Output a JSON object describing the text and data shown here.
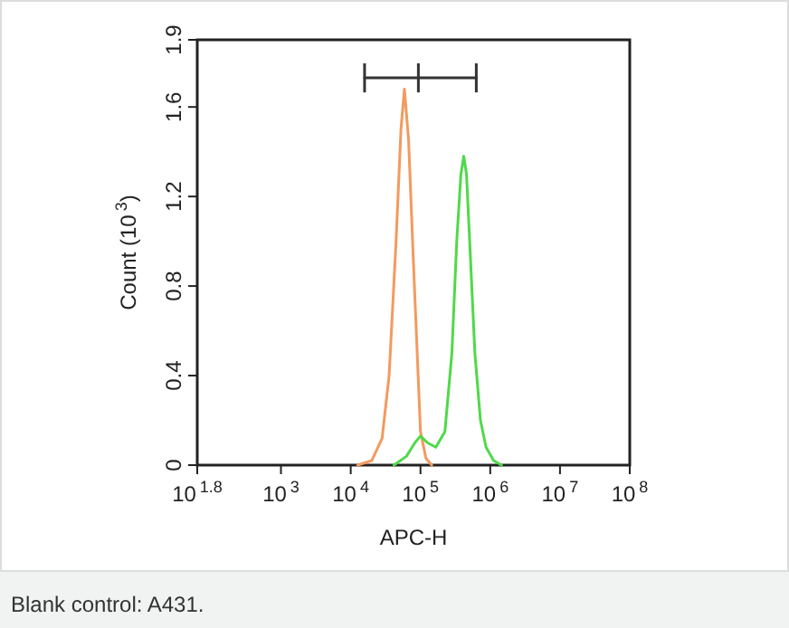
{
  "chart_data": {
    "type": "line",
    "xlabel": "APC-H",
    "ylabel": "Count (10$^{3}$)",
    "log": "x",
    "marker": "none",
    "line_style": "solid",
    "xlim": [
      63.1,
      100000000
    ],
    "xticks": [
      {
        "value": 63.1,
        "label": "10$^{1.8}$"
      },
      {
        "value": 1000,
        "label": "10$^{3}$"
      },
      {
        "value": 10000,
        "label": "10$^{4}$"
      },
      {
        "value": 100000,
        "label": "10$^{5}$"
      },
      {
        "value": 1000000,
        "label": "10$^{6}$"
      },
      {
        "value": 10000000,
        "label": "10$^{7}$"
      },
      {
        "value": 100000000,
        "label": "10$^{8}$"
      }
    ],
    "ylim": [
      0,
      1.9
    ],
    "yticks": [
      0,
      0.4,
      0.8,
      1.2,
      1.6,
      1.9
    ],
    "series": [
      {
        "color": "#f39a5e",
        "x": [
          12600,
          20000,
          28200,
          35500,
          44700,
          52500,
          58900,
          67600,
          79400,
          100000,
          120000,
          145000
        ],
        "values": [
          0,
          0.02,
          0.12,
          0.4,
          1.0,
          1.5,
          1.68,
          1.45,
          0.9,
          0.15,
          0.03,
          0
        ]
      },
      {
        "color": "#4fd94a",
        "x": [
          41700,
          63100,
          83200,
          100000,
          126000,
          166000,
          224000,
          282000,
          331000,
          380000,
          417000,
          457000,
          525000,
          603000,
          724000,
          871000,
          1120000,
          1450000
        ],
        "values": [
          0,
          0.04,
          0.1,
          0.13,
          0.1,
          0.08,
          0.15,
          0.5,
          1.0,
          1.3,
          1.38,
          1.3,
          0.9,
          0.5,
          0.2,
          0.08,
          0.02,
          0
        ]
      },
      {
        "color": "#333333",
        "x": [
          15800,
          93300,
          631000
        ],
        "values": [
          1.73,
          1.73,
          1.73
        ],
        "errors": [
          0.065,
          0.065,
          0.065
        ]
      }
    ],
    "annotations": [
      "Blank control: A431."
    ]
  }
}
